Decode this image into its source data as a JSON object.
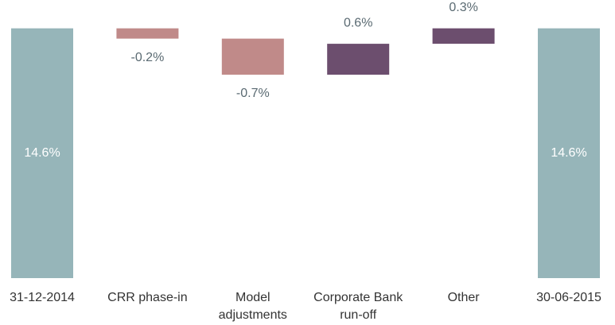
{
  "chart_data": {
    "type": "waterfall",
    "categories": [
      "31-12-2014",
      "CRR phase-in",
      "Model adjustments",
      "Corporate Bank run-off",
      "Other",
      "30-06-2015"
    ],
    "values": [
      14.6,
      -0.2,
      -0.7,
      0.6,
      0.3,
      14.6
    ],
    "value_labels": [
      "14.6%",
      "-0.2%",
      "-0.7%",
      "0.6%",
      "0.3%",
      "14.6%"
    ],
    "colors": [
      "#96b5b9",
      "#c08a89",
      "#c08a89",
      "#6c4e6e",
      "#6c4e6e",
      "#96b5b9"
    ],
    "ylim": [
      9.75,
      15.15
    ]
  }
}
